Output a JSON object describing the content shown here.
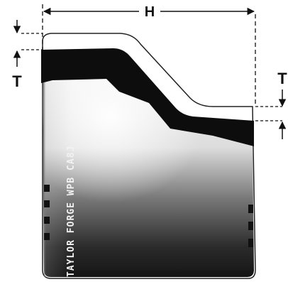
{
  "diagram": {
    "dimension_labels": {
      "height": "H",
      "wall_top": "T",
      "wall_right": "T"
    },
    "stamp_text": "TAYLOR FORGE WPB CA8J",
    "colors": {
      "ink": "#111111",
      "wall": "#0d0d0d",
      "body_light": "#e6e6e6",
      "body_dark": "#2a2a2a",
      "paper": "#ffffff"
    }
  }
}
